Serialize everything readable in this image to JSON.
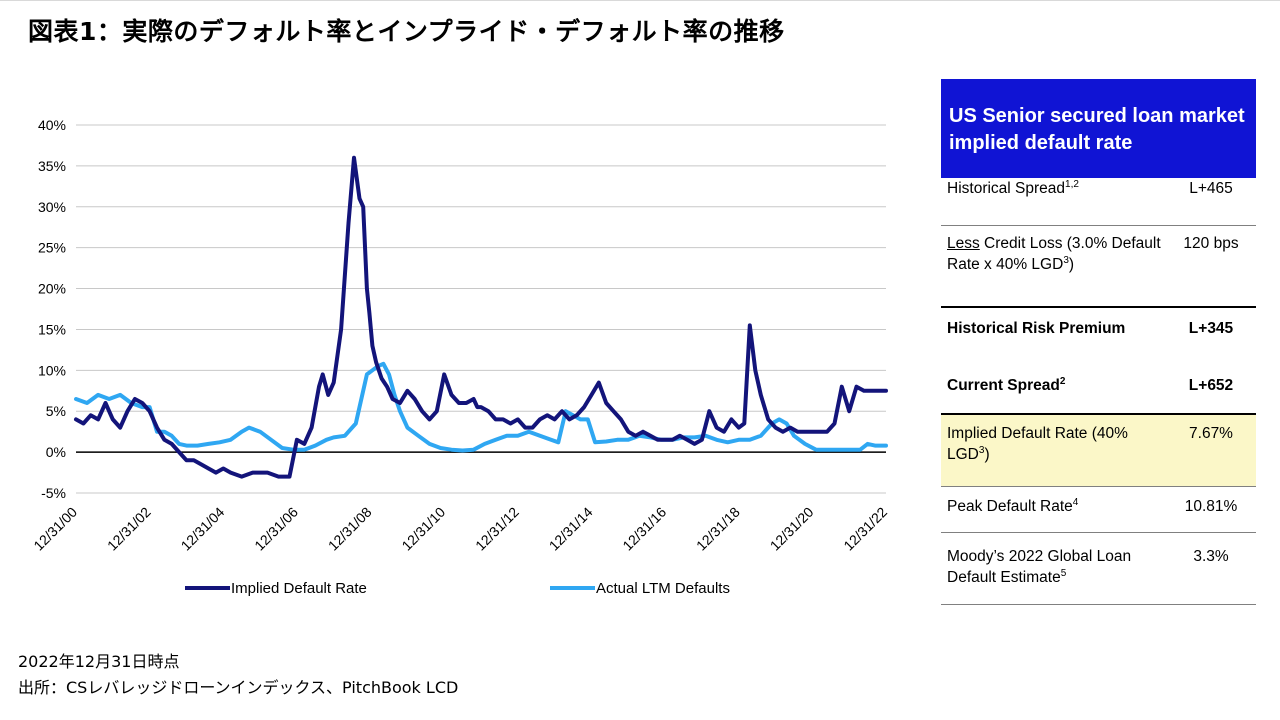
{
  "title": "図表1：実際のデフォルト率とインプライド・デフォルト率の推移",
  "colors": {
    "implied": "#13147a",
    "actual": "#2fa7f2",
    "panel_header": "#1014d4",
    "highlight": "#fbf7c8"
  },
  "chart_data": {
    "type": "line",
    "title": "",
    "xlabel": "",
    "ylabel": "",
    "x_tick_labels": [
      "12/31/00",
      "12/31/02",
      "12/31/04",
      "12/31/06",
      "12/31/08",
      "12/31/10",
      "12/31/12",
      "12/31/14",
      "12/31/16",
      "12/31/18",
      "12/31/20",
      "12/31/22"
    ],
    "y_tick_labels": [
      "40%",
      "35%",
      "30%",
      "25%",
      "20%",
      "15%",
      "10%",
      "5%",
      "0%",
      "-5%"
    ],
    "ylim": [
      -5,
      40
    ],
    "xlim": [
      2001.0,
      2023.0
    ],
    "grid": true,
    "legend_position": "bottom",
    "series": [
      {
        "name": "Implied Default Rate",
        "color": "#13147a",
        "x": [
          2001.0,
          2001.2,
          2001.4,
          2001.6,
          2001.8,
          2002.0,
          2002.2,
          2002.4,
          2002.6,
          2002.8,
          2003.0,
          2003.2,
          2003.4,
          2003.6,
          2003.8,
          2004.0,
          2004.2,
          2004.4,
          2004.6,
          2004.8,
          2005.0,
          2005.2,
          2005.5,
          2005.8,
          2006.0,
          2006.2,
          2006.5,
          2006.8,
          2007.0,
          2007.2,
          2007.4,
          2007.6,
          2007.7,
          2007.85,
          2008.0,
          2008.2,
          2008.4,
          2008.55,
          2008.7,
          2008.8,
          2008.9,
          2008.97,
          2009.05,
          2009.15,
          2009.3,
          2009.45,
          2009.6,
          2009.8,
          2010.0,
          2010.2,
          2010.4,
          2010.6,
          2010.8,
          2011.0,
          2011.2,
          2011.4,
          2011.6,
          2011.8,
          2011.9,
          2012.0,
          2012.2,
          2012.4,
          2012.6,
          2012.8,
          2013.0,
          2013.2,
          2013.4,
          2013.6,
          2013.8,
          2014.0,
          2014.2,
          2014.4,
          2014.6,
          2014.8,
          2015.0,
          2015.2,
          2015.4,
          2015.6,
          2015.8,
          2016.0,
          2016.2,
          2016.4,
          2016.6,
          2016.8,
          2017.0,
          2017.2,
          2017.4,
          2017.6,
          2017.8,
          2018.0,
          2018.2,
          2018.4,
          2018.6,
          2018.8,
          2019.0,
          2019.15,
          2019.3,
          2019.45,
          2019.6,
          2019.8,
          2020.0,
          2020.2,
          2020.4,
          2020.6,
          2020.8,
          2021.0,
          2021.2,
          2021.4,
          2021.6,
          2021.8,
          2022.0,
          2022.2,
          2022.4,
          2022.6,
          2022.8,
          2023.0
        ],
        "y": [
          4.0,
          3.5,
          4.5,
          4.0,
          6.0,
          4.0,
          3.0,
          5.0,
          6.5,
          6.0,
          5.0,
          3.0,
          1.5,
          1.0,
          0.0,
          -1.0,
          -1.0,
          -1.5,
          -2.0,
          -2.5,
          -2.0,
          -2.5,
          -3.0,
          -2.5,
          -2.5,
          -2.5,
          -3.0,
          -3.0,
          1.5,
          1.0,
          3.0,
          8.0,
          9.5,
          7.0,
          8.5,
          15.0,
          28.0,
          36.0,
          31.0,
          30.0,
          20.0,
          17.0,
          13.0,
          11.0,
          9.0,
          8.0,
          6.5,
          6.0,
          7.5,
          6.5,
          5.0,
          4.0,
          5.0,
          9.5,
          7.0,
          6.0,
          6.0,
          6.5,
          5.5,
          5.5,
          5.0,
          4.0,
          4.0,
          3.5,
          4.0,
          3.0,
          3.0,
          4.0,
          4.5,
          4.0,
          5.0,
          4.0,
          4.5,
          5.5,
          7.0,
          8.5,
          6.0,
          5.0,
          4.0,
          2.5,
          2.0,
          2.5,
          2.0,
          1.5,
          1.5,
          1.5,
          2.0,
          1.5,
          1.0,
          1.5,
          5.0,
          3.0,
          2.5,
          4.0,
          3.0,
          3.5,
          15.5,
          10.0,
          7.0,
          4.0,
          3.0,
          2.5,
          3.0,
          2.5,
          2.5,
          2.5,
          2.5,
          2.5,
          3.5,
          8.0,
          5.0,
          8.0,
          7.5,
          7.5,
          7.5,
          7.5
        ],
        "width": 4
      },
      {
        "name": "Actual LTM Defaults",
        "color": "#2fa7f2",
        "x": [
          2001.0,
          2001.3,
          2001.6,
          2001.9,
          2002.2,
          2002.5,
          2002.8,
          2003.0,
          2003.2,
          2003.4,
          2003.6,
          2003.8,
          2004.0,
          2004.3,
          2004.6,
          2004.9,
          2005.2,
          2005.5,
          2005.7,
          2006.0,
          2006.3,
          2006.6,
          2006.9,
          2007.2,
          2007.5,
          2007.8,
          2008.0,
          2008.3,
          2008.6,
          2008.9,
          2009.05,
          2009.2,
          2009.35,
          2009.5,
          2009.65,
          2009.8,
          2010.0,
          2010.3,
          2010.6,
          2010.9,
          2011.2,
          2011.5,
          2011.8,
          2012.1,
          2012.4,
          2012.7,
          2013.0,
          2013.3,
          2013.6,
          2013.9,
          2014.1,
          2014.3,
          2014.5,
          2014.7,
          2014.9,
          2015.1,
          2015.4,
          2015.7,
          2016.0,
          2016.3,
          2016.6,
          2016.9,
          2017.2,
          2017.5,
          2017.8,
          2018.1,
          2018.4,
          2018.7,
          2019.0,
          2019.3,
          2019.6,
          2019.9,
          2020.1,
          2020.3,
          2020.5,
          2020.8,
          2021.1,
          2021.4,
          2021.7,
          2022.0,
          2022.3,
          2022.5,
          2022.7,
          2023.0
        ],
        "y": [
          6.5,
          6.0,
          7.0,
          6.5,
          7.0,
          6.0,
          5.5,
          5.5,
          2.5,
          2.5,
          2.0,
          1.0,
          0.8,
          0.8,
          1.0,
          1.2,
          1.5,
          2.5,
          3.0,
          2.5,
          1.5,
          0.5,
          0.3,
          0.3,
          0.8,
          1.5,
          1.8,
          2.0,
          3.5,
          9.5,
          10.0,
          10.5,
          10.8,
          9.5,
          7.0,
          5.0,
          3.0,
          2.0,
          1.0,
          0.5,
          0.3,
          0.2,
          0.3,
          1.0,
          1.5,
          2.0,
          2.0,
          2.5,
          2.0,
          1.5,
          1.2,
          5.0,
          4.5,
          4.0,
          4.0,
          1.2,
          1.3,
          1.5,
          1.5,
          2.0,
          1.8,
          1.5,
          1.5,
          1.8,
          1.8,
          2.0,
          1.5,
          1.2,
          1.5,
          1.5,
          2.0,
          3.5,
          4.0,
          3.5,
          2.0,
          1.0,
          0.3,
          0.3,
          0.3,
          0.3,
          0.3,
          1.0,
          0.8,
          0.8
        ],
        "width": 4
      }
    ]
  },
  "legend": [
    {
      "label": "Implied Default Rate",
      "color": "#13147a"
    },
    {
      "label": "Actual LTM Defaults",
      "color": "#2fa7f2"
    }
  ],
  "panel": {
    "header": "US Senior secured loan market implied default rate",
    "rows": {
      "historical_spread": {
        "label": "Historical Spread",
        "sup": "1,2",
        "value": "L+465"
      },
      "credit_loss": {
        "label_u": "Less",
        "label_a": " Credit Loss (3.0% Default Rate x 40% LGD",
        "sup": "3",
        "label_b": ")",
        "value": "120 bps"
      },
      "risk_premium": {
        "label": "Historical Risk Premium",
        "value": "L+345"
      },
      "current_spread": {
        "label": "Current Spread",
        "sup": "2",
        "value": "L+652"
      },
      "implied_default": {
        "label": "Implied Default Rate (40% LGD",
        "sup": "3",
        "label_b": ")",
        "value": "7.67%"
      },
      "peak_default": {
        "label": "Peak Default Rate",
        "sup": "4",
        "value": "10.81%"
      },
      "moodys": {
        "label": "Moody’s 2022 Global Loan Default Estimate",
        "sup": "5",
        "value": "3.3%"
      }
    }
  },
  "notes": {
    "date": "2022年12月31日時点",
    "source": "出所：CSレバレッジドローンインデックス、PitchBook LCD"
  }
}
